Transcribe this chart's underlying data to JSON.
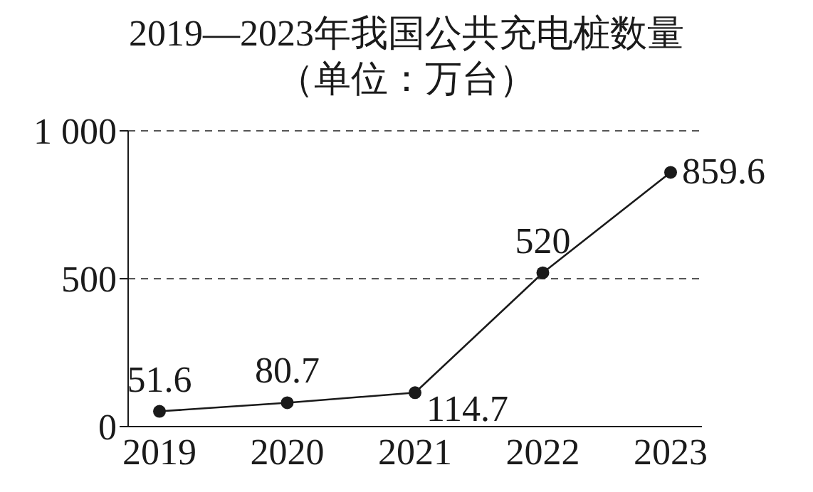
{
  "chart_data": {
    "type": "line",
    "title": "2019—2023年我国公共充电桩数量",
    "subtitle": "（单位：万台）",
    "categories": [
      "2019",
      "2020",
      "2021",
      "2022",
      "2023"
    ],
    "series": [
      {
        "color": "#1a1a1a",
        "values": [
          51.6,
          80.7,
          114.7,
          520,
          859.6
        ]
      }
    ],
    "ylim": [
      0,
      1000
    ],
    "yticks": [
      0,
      500,
      {
        "value": 1000,
        "label": "1 000"
      }
    ],
    "grid": "y",
    "marker": "circle",
    "line_style": "solid",
    "data_labels": true,
    "legend": false
  }
}
